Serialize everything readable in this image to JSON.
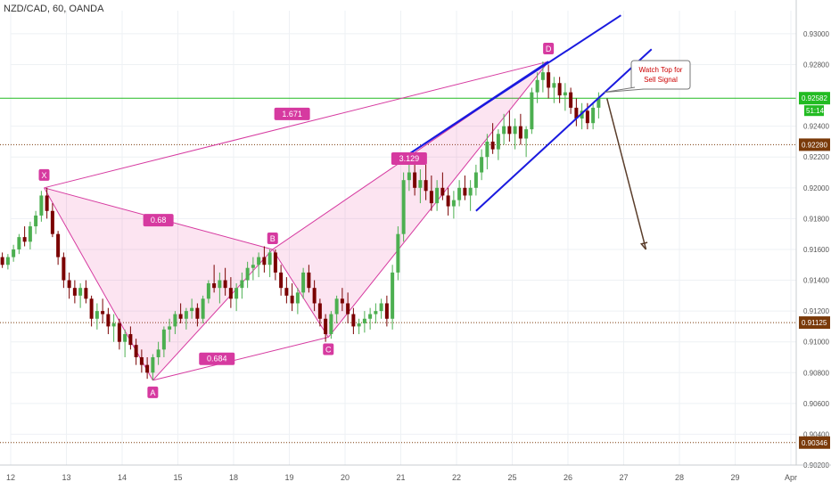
{
  "header": {
    "symbol_line": "NZD/CAD, 60, OANDA"
  },
  "chart_data": {
    "type": "candlestick",
    "title": "NZD/CAD, 60, OANDA",
    "ylim": [
      0.902,
      0.9315
    ],
    "y_ticks": [
      "0.93000",
      "0.92800",
      "0.92400",
      "0.92200",
      "0.92000",
      "0.91800",
      "0.91600",
      "0.91400",
      "0.91200",
      "0.91000",
      "0.90800",
      "0.90600",
      "0.90400",
      "0.90200"
    ],
    "y_tick_values": [
      0.93,
      0.928,
      0.924,
      0.922,
      0.92,
      0.918,
      0.916,
      0.914,
      0.912,
      0.91,
      0.908,
      0.906,
      0.904,
      0.902
    ],
    "x_ticks": [
      "12",
      "13",
      "14",
      "15",
      "18",
      "19",
      "20",
      "21",
      "22",
      "25",
      "26",
      "27",
      "28",
      "29",
      "Apr"
    ],
    "x_tick_positions": [
      0.0,
      1.0,
      2.0,
      3.0,
      4.0,
      5.0,
      6.0,
      7.0,
      8.0,
      9.0,
      10.0,
      11.0,
      12.0,
      13.0,
      14.0
    ],
    "price_tag": {
      "value": "0.92582",
      "countdown": "51:14",
      "color": "#22bb22"
    },
    "horizontal_levels": [
      {
        "value": 0.9228,
        "label": "0.92280",
        "color": "#7a3a0a"
      },
      {
        "value": 0.91125,
        "label": "0.91125",
        "color": "#7a3a0a"
      },
      {
        "value": 0.90346,
        "label": "0.90346",
        "color": "#7a3a0a"
      }
    ],
    "harmonic_points": [
      {
        "label": "X",
        "x": 0.6,
        "y": 0.92
      },
      {
        "label": "A",
        "x": 2.55,
        "y": 0.9075
      },
      {
        "label": "B",
        "x": 4.7,
        "y": 0.916
      },
      {
        "label": "C",
        "x": 5.7,
        "y": 0.9103
      },
      {
        "label": "D",
        "x": 9.65,
        "y": 0.9282
      }
    ],
    "ratios": [
      {
        "label": "0.68",
        "x": 2.65,
        "y": 0.9179
      },
      {
        "label": "0.684",
        "x": 3.7,
        "y": 0.9089
      },
      {
        "label": "1.671",
        "x": 5.05,
        "y": 0.9248
      },
      {
        "label": "3.129",
        "x": 7.15,
        "y": 0.9219
      }
    ],
    "channel_lines": [
      {
        "from": [
          7.15,
          0.9222
        ],
        "to": [
          10.95,
          0.9312
        ]
      },
      {
        "from": [
          8.35,
          0.9185
        ],
        "to": [
          11.5,
          0.929
        ]
      },
      {
        "from": [
          7.15,
          0.9222
        ],
        "to": [
          9.65,
          0.9282
        ]
      }
    ],
    "annotation": {
      "text_line1": "Watch Top for",
      "text_line2": "Sell Signal",
      "color": "#cc0000"
    },
    "arrow": {
      "from": [
        10.7,
        0.9258
      ],
      "to": [
        11.4,
        0.916
      ]
    },
    "candles": [
      [
        -0.15,
        0.9155,
        0.9158,
        0.9148,
        0.915
      ],
      [
        -0.05,
        0.915,
        0.9157,
        0.9147,
        0.9155
      ],
      [
        0.05,
        0.9155,
        0.9163,
        0.9152,
        0.916
      ],
      [
        0.15,
        0.916,
        0.917,
        0.9157,
        0.9168
      ],
      [
        0.25,
        0.9168,
        0.9175,
        0.9162,
        0.9165
      ],
      [
        0.35,
        0.9165,
        0.9178,
        0.916,
        0.9175
      ],
      [
        0.45,
        0.9175,
        0.9185,
        0.917,
        0.9182
      ],
      [
        0.55,
        0.9182,
        0.9198,
        0.9178,
        0.9195
      ],
      [
        0.65,
        0.9195,
        0.92,
        0.918,
        0.9185
      ],
      [
        0.75,
        0.9185,
        0.919,
        0.9168,
        0.917
      ],
      [
        0.85,
        0.917,
        0.9172,
        0.915,
        0.9155
      ],
      [
        0.95,
        0.9155,
        0.9158,
        0.9135,
        0.914
      ],
      [
        1.05,
        0.914,
        0.9145,
        0.9128,
        0.9135
      ],
      [
        1.15,
        0.9135,
        0.914,
        0.9125,
        0.913
      ],
      [
        1.25,
        0.913,
        0.9138,
        0.9122,
        0.9135
      ],
      [
        1.35,
        0.9135,
        0.914,
        0.9125,
        0.9128
      ],
      [
        1.45,
        0.9128,
        0.913,
        0.911,
        0.9115
      ],
      [
        1.55,
        0.9115,
        0.9125,
        0.9108,
        0.912
      ],
      [
        1.65,
        0.912,
        0.9128,
        0.9112,
        0.9118
      ],
      [
        1.75,
        0.9118,
        0.9122,
        0.9105,
        0.911
      ],
      [
        1.85,
        0.911,
        0.9118,
        0.91,
        0.9112
      ],
      [
        1.95,
        0.9112,
        0.9115,
        0.9095,
        0.91
      ],
      [
        2.05,
        0.91,
        0.9108,
        0.909,
        0.9105
      ],
      [
        2.15,
        0.9105,
        0.911,
        0.9095,
        0.9098
      ],
      [
        2.25,
        0.9098,
        0.9102,
        0.9085,
        0.909
      ],
      [
        2.35,
        0.909,
        0.9095,
        0.908,
        0.9085
      ],
      [
        2.45,
        0.9085,
        0.909,
        0.9076,
        0.908
      ],
      [
        2.55,
        0.908,
        0.9092,
        0.9075,
        0.909
      ],
      [
        2.65,
        0.909,
        0.91,
        0.9085,
        0.9095
      ],
      [
        2.75,
        0.9095,
        0.911,
        0.909,
        0.9108
      ],
      [
        2.85,
        0.9108,
        0.9115,
        0.91,
        0.911
      ],
      [
        2.95,
        0.911,
        0.912,
        0.9105,
        0.9118
      ],
      [
        3.05,
        0.9118,
        0.9125,
        0.9112,
        0.9115
      ],
      [
        3.15,
        0.9115,
        0.9122,
        0.9108,
        0.912
      ],
      [
        3.25,
        0.912,
        0.9128,
        0.9115,
        0.9122
      ],
      [
        3.35,
        0.9122,
        0.9125,
        0.911,
        0.9115
      ],
      [
        3.45,
        0.9115,
        0.913,
        0.9112,
        0.9128
      ],
      [
        3.55,
        0.9128,
        0.914,
        0.9125,
        0.9138
      ],
      [
        3.65,
        0.9138,
        0.915,
        0.9132,
        0.9135
      ],
      [
        3.75,
        0.9135,
        0.9145,
        0.9125,
        0.914
      ],
      [
        3.85,
        0.914,
        0.9148,
        0.913,
        0.9135
      ],
      [
        3.95,
        0.9135,
        0.9142,
        0.9122,
        0.9128
      ],
      [
        4.05,
        0.9128,
        0.9138,
        0.912,
        0.9135
      ],
      [
        4.15,
        0.9135,
        0.9145,
        0.9128,
        0.914
      ],
      [
        4.25,
        0.914,
        0.9152,
        0.9135,
        0.9148
      ],
      [
        4.35,
        0.9148,
        0.9155,
        0.914,
        0.915
      ],
      [
        4.45,
        0.915,
        0.9158,
        0.9142,
        0.9155
      ],
      [
        4.55,
        0.9155,
        0.9162,
        0.9145,
        0.915
      ],
      [
        4.65,
        0.915,
        0.916,
        0.9142,
        0.9158
      ],
      [
        4.75,
        0.9158,
        0.916,
        0.914,
        0.9145
      ],
      [
        4.85,
        0.9145,
        0.915,
        0.913,
        0.9135
      ],
      [
        4.95,
        0.9135,
        0.9142,
        0.9125,
        0.913
      ],
      [
        5.05,
        0.913,
        0.9138,
        0.912,
        0.9125
      ],
      [
        5.15,
        0.9125,
        0.9135,
        0.9118,
        0.9132
      ],
      [
        5.25,
        0.9132,
        0.9148,
        0.9128,
        0.9145
      ],
      [
        5.35,
        0.9145,
        0.915,
        0.9132,
        0.9135
      ],
      [
        5.45,
        0.9135,
        0.914,
        0.912,
        0.9125
      ],
      [
        5.55,
        0.9125,
        0.9128,
        0.911,
        0.9115
      ],
      [
        5.65,
        0.9115,
        0.9118,
        0.91,
        0.9105
      ],
      [
        5.75,
        0.9105,
        0.912,
        0.9102,
        0.9118
      ],
      [
        5.85,
        0.9118,
        0.913,
        0.9112,
        0.9128
      ],
      [
        5.95,
        0.9128,
        0.9135,
        0.912,
        0.9125
      ],
      [
        6.05,
        0.9125,
        0.9132,
        0.9112,
        0.9118
      ],
      [
        6.15,
        0.9118,
        0.9122,
        0.9105,
        0.911
      ],
      [
        6.25,
        0.911,
        0.9115,
        0.9105,
        0.9112
      ],
      [
        6.35,
        0.9112,
        0.912,
        0.9106,
        0.9115
      ],
      [
        6.45,
        0.9115,
        0.9122,
        0.9108,
        0.9118
      ],
      [
        6.55,
        0.9118,
        0.9125,
        0.9112,
        0.912
      ],
      [
        6.65,
        0.912,
        0.9128,
        0.9115,
        0.9125
      ],
      [
        6.75,
        0.9125,
        0.913,
        0.911,
        0.9115
      ],
      [
        6.85,
        0.9115,
        0.915,
        0.9108,
        0.9145
      ],
      [
        6.95,
        0.9145,
        0.9175,
        0.914,
        0.917
      ],
      [
        7.05,
        0.917,
        0.921,
        0.9165,
        0.9205
      ],
      [
        7.15,
        0.9205,
        0.9222,
        0.9198,
        0.921
      ],
      [
        7.25,
        0.921,
        0.922,
        0.9195,
        0.92
      ],
      [
        7.35,
        0.92,
        0.9212,
        0.919,
        0.9205
      ],
      [
        7.45,
        0.9205,
        0.9215,
        0.9192,
        0.9198
      ],
      [
        7.55,
        0.9198,
        0.9208,
        0.9185,
        0.919
      ],
      [
        7.65,
        0.919,
        0.9205,
        0.9185,
        0.92
      ],
      [
        7.75,
        0.92,
        0.921,
        0.9192,
        0.9195
      ],
      [
        7.85,
        0.9195,
        0.92,
        0.9182,
        0.9188
      ],
      [
        7.95,
        0.9188,
        0.9198,
        0.918,
        0.9192
      ],
      [
        8.05,
        0.9192,
        0.9205,
        0.9188,
        0.92
      ],
      [
        8.15,
        0.92,
        0.9208,
        0.9192,
        0.9195
      ],
      [
        8.25,
        0.9195,
        0.9205,
        0.9185,
        0.92
      ],
      [
        8.35,
        0.92,
        0.9215,
        0.9195,
        0.921
      ],
      [
        8.45,
        0.921,
        0.9225,
        0.9205,
        0.922
      ],
      [
        8.55,
        0.922,
        0.9235,
        0.9212,
        0.923
      ],
      [
        8.65,
        0.923,
        0.9242,
        0.9222,
        0.9225
      ],
      [
        8.75,
        0.9225,
        0.9238,
        0.9218,
        0.9235
      ],
      [
        8.85,
        0.9235,
        0.9248,
        0.9228,
        0.924
      ],
      [
        8.95,
        0.924,
        0.925,
        0.923,
        0.9235
      ],
      [
        9.05,
        0.9235,
        0.9245,
        0.9225,
        0.924
      ],
      [
        9.15,
        0.924,
        0.9248,
        0.9228,
        0.9232
      ],
      [
        9.25,
        0.9232,
        0.924,
        0.922,
        0.9238
      ],
      [
        9.35,
        0.9238,
        0.9265,
        0.9235,
        0.9262
      ],
      [
        9.45,
        0.9262,
        0.9275,
        0.9255,
        0.927
      ],
      [
        9.55,
        0.927,
        0.9282,
        0.9262,
        0.9275
      ],
      [
        9.65,
        0.9275,
        0.928,
        0.9258,
        0.9265
      ],
      [
        9.75,
        0.9265,
        0.9272,
        0.9255,
        0.9268
      ],
      [
        9.85,
        0.9268,
        0.9272,
        0.9255,
        0.926
      ],
      [
        9.95,
        0.926,
        0.9268,
        0.925,
        0.9262
      ],
      [
        10.05,
        0.9262,
        0.9265,
        0.9248,
        0.9252
      ],
      [
        10.15,
        0.9252,
        0.9258,
        0.924,
        0.9245
      ],
      [
        10.25,
        0.9245,
        0.9255,
        0.9238,
        0.925
      ],
      [
        10.35,
        0.925,
        0.9255,
        0.9238,
        0.9242
      ],
      [
        10.45,
        0.9242,
        0.9255,
        0.9238,
        0.9252
      ],
      [
        10.55,
        0.9252,
        0.9262,
        0.9245,
        0.9258
      ]
    ]
  }
}
